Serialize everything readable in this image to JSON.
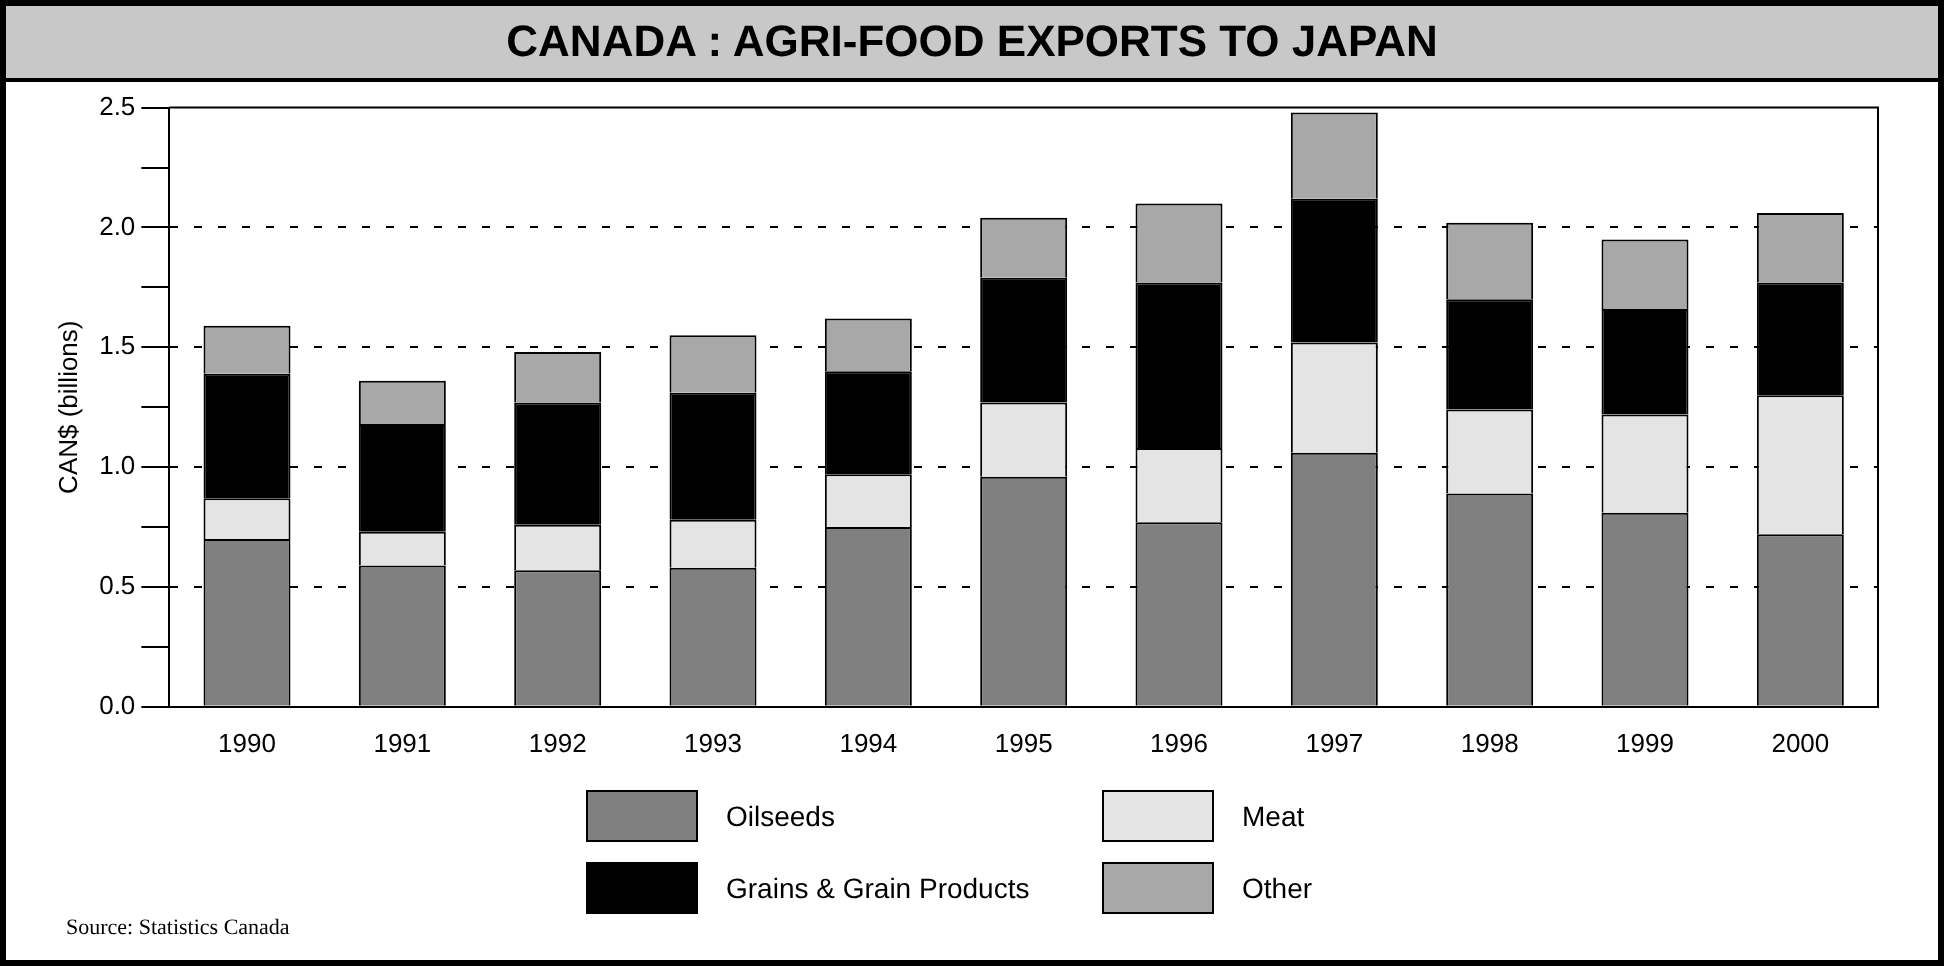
{
  "chart_data": {
    "type": "bar",
    "title": "CANADA : AGRI-FOOD EXPORTS TO JAPAN",
    "ylabel": "CAN$ (billions)",
    "categories": [
      "1990",
      "1991",
      "1992",
      "1993",
      "1994",
      "1995",
      "1996",
      "1997",
      "1998",
      "1999",
      "2000"
    ],
    "stacked": true,
    "series": [
      {
        "name": "Oilseeds",
        "color": "#808080",
        "values": [
          0.7,
          0.59,
          0.57,
          0.58,
          0.75,
          0.96,
          0.77,
          1.06,
          0.89,
          0.81,
          0.72
        ]
      },
      {
        "name": "Meat",
        "color": "#e4e4e4",
        "values": [
          0.17,
          0.14,
          0.19,
          0.2,
          0.22,
          0.31,
          0.31,
          0.46,
          0.35,
          0.41,
          0.58
        ]
      },
      {
        "name": "Grains & Grain Products",
        "color": "#000000",
        "values": [
          0.52,
          0.45,
          0.51,
          0.53,
          0.43,
          0.52,
          0.69,
          0.6,
          0.46,
          0.44,
          0.47
        ]
      },
      {
        "name": "Other",
        "color": "#a8a8a8",
        "values": [
          0.2,
          0.18,
          0.21,
          0.24,
          0.22,
          0.25,
          0.33,
          0.36,
          0.32,
          0.29,
          0.29
        ]
      }
    ],
    "ylim": [
      0,
      2.5
    ],
    "yticks": [
      {
        "value": 0,
        "label": "0.0"
      },
      {
        "value": 0.25,
        "label": null
      },
      {
        "value": 0.5,
        "label": "0.5"
      },
      {
        "value": 0.75,
        "label": null
      },
      {
        "value": 1,
        "label": "1.0"
      },
      {
        "value": 1.25,
        "label": null
      },
      {
        "value": 1.5,
        "label": "1.5"
      },
      {
        "value": 1.75,
        "label": null
      },
      {
        "value": 2,
        "label": "2.0"
      },
      {
        "value": 2.25,
        "label": null
      },
      {
        "value": 2.5,
        "label": "2.5"
      }
    ],
    "grid": "y",
    "line_style": "dashed",
    "legend": "bottom",
    "annotations": [
      "Source: Statistics Canada"
    ]
  }
}
